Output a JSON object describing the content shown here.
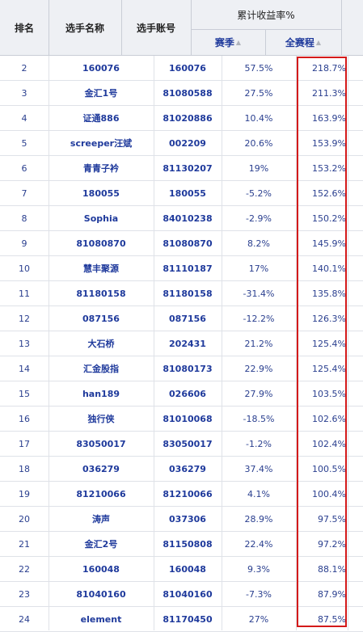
{
  "headers": {
    "rank": "排名",
    "player_name": "选手名称",
    "player_account": "选手账号",
    "cumulative_return": "累计收益率%",
    "season": "赛季",
    "full_course": "全赛程"
  },
  "rows": [
    {
      "rank": "2",
      "name": "160076",
      "account": "160076",
      "season": "57.5%",
      "total": "218.7%"
    },
    {
      "rank": "3",
      "name": "金汇1号",
      "account": "81080588",
      "season": "27.5%",
      "total": "211.3%"
    },
    {
      "rank": "4",
      "name": "证通886",
      "account": "81020886",
      "season": "10.4%",
      "total": "163.9%"
    },
    {
      "rank": "5",
      "name": "screeper汪斌",
      "account": "002209",
      "season": "20.6%",
      "total": "153.9%"
    },
    {
      "rank": "6",
      "name": "青青子衿",
      "account": "81130207",
      "season": "19%",
      "total": "153.2%"
    },
    {
      "rank": "7",
      "name": "180055",
      "account": "180055",
      "season": "-5.2%",
      "total": "152.6%"
    },
    {
      "rank": "8",
      "name": "Sophia",
      "account": "84010238",
      "season": "-2.9%",
      "total": "150.2%"
    },
    {
      "rank": "9",
      "name": "81080870",
      "account": "81080870",
      "season": "8.2%",
      "total": "145.9%"
    },
    {
      "rank": "10",
      "name": "慧丰聚源",
      "account": "81110187",
      "season": "17%",
      "total": "140.1%"
    },
    {
      "rank": "11",
      "name": "81180158",
      "account": "81180158",
      "season": "-31.4%",
      "total": "135.8%"
    },
    {
      "rank": "12",
      "name": "087156",
      "account": "087156",
      "season": "-12.2%",
      "total": "126.3%"
    },
    {
      "rank": "13",
      "name": "大石桥",
      "account": "202431",
      "season": "21.2%",
      "total": "125.4%"
    },
    {
      "rank": "14",
      "name": "汇金股指",
      "account": "81080173",
      "season": "22.9%",
      "total": "125.4%"
    },
    {
      "rank": "15",
      "name": "han189",
      "account": "026606",
      "season": "27.9%",
      "total": "103.5%"
    },
    {
      "rank": "16",
      "name": "独行侠",
      "account": "81010068",
      "season": "-18.5%",
      "total": "102.6%"
    },
    {
      "rank": "17",
      "name": "83050017",
      "account": "83050017",
      "season": "-1.2%",
      "total": "102.4%"
    },
    {
      "rank": "18",
      "name": "036279",
      "account": "036279",
      "season": "37.4%",
      "total": "100.5%"
    },
    {
      "rank": "19",
      "name": "81210066",
      "account": "81210066",
      "season": "4.1%",
      "total": "100.4%"
    },
    {
      "rank": "20",
      "name": "涛声",
      "account": "037306",
      "season": "28.9%",
      "total": "97.5%"
    },
    {
      "rank": "21",
      "name": "金汇2号",
      "account": "81150808",
      "season": "22.4%",
      "total": "97.2%"
    },
    {
      "rank": "22",
      "name": "160048",
      "account": "160048",
      "season": "9.3%",
      "total": "88.1%"
    },
    {
      "rank": "23",
      "name": "81040160",
      "account": "81040160",
      "season": "-7.3%",
      "total": "87.9%"
    },
    {
      "rank": "24",
      "name": "element",
      "account": "81170450",
      "season": "27%",
      "total": "87.5%"
    }
  ],
  "colors": {
    "highlight_border": "#d41a1a",
    "link_text": "#1f3a9c",
    "header_bg": "#eef0f4"
  }
}
